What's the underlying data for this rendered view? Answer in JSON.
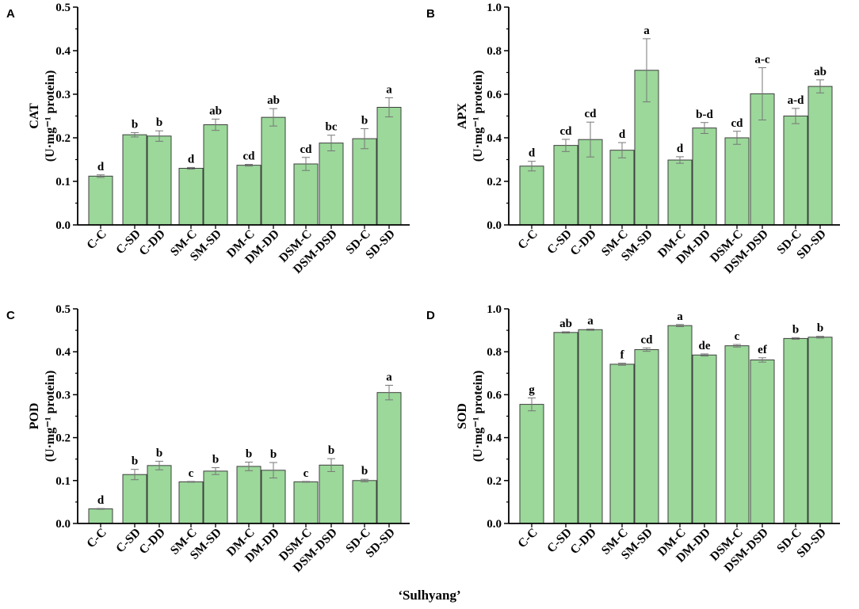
{
  "colors": {
    "bar_fill": "#9bd89a",
    "bar_stroke": "#3f3f3f",
    "axis": "#000000",
    "error": "#777777"
  },
  "x_title": "‘Sulhyang’",
  "categories": [
    "C-C",
    "C-SD",
    "C-DD",
    "SM-C",
    "SM-SD",
    "DM-C",
    "DM-DD",
    "DSM-C",
    "DSM-DSD",
    "SD-C",
    "SD-SD"
  ],
  "chart_data": [
    {
      "panel": "A",
      "type": "bar",
      "ylabel_line1": "CAT",
      "ylabel_line2": "(U·mg⁻¹ protein)",
      "ylim": [
        0,
        0.5
      ],
      "yticks": [
        "0.0",
        "0.1",
        "0.2",
        "0.3",
        "0.4",
        "0.5"
      ],
      "categories": [
        "C-C",
        "C-SD",
        "C-DD",
        "SM-C",
        "SM-SD",
        "DM-C",
        "DM-DD",
        "DSM-C",
        "DSM-DSD",
        "SD-C",
        "SD-SD"
      ],
      "values": [
        0.112,
        0.207,
        0.204,
        0.13,
        0.23,
        0.137,
        0.247,
        0.14,
        0.188,
        0.198,
        0.27
      ],
      "errors": [
        0.003,
        0.005,
        0.012,
        0.002,
        0.013,
        0.002,
        0.02,
        0.015,
        0.018,
        0.023,
        0.022
      ],
      "labels": [
        "d",
        "b",
        "b",
        "d",
        "ab",
        "cd",
        "ab",
        "cd",
        "bc",
        "b",
        "a"
      ]
    },
    {
      "panel": "B",
      "type": "bar",
      "ylabel_line1": "APX",
      "ylabel_line2": "(U·mg⁻¹ protein)",
      "ylim": [
        0,
        1.0
      ],
      "yticks": [
        "0.0",
        "0.2",
        "0.4",
        "0.6",
        "0.8",
        "1.0"
      ],
      "categories": [
        "C-C",
        "C-SD",
        "C-DD",
        "SM-C",
        "SM-SD",
        "DM-C",
        "DM-DD",
        "DSM-C",
        "DSM-DSD",
        "SD-C",
        "SD-SD"
      ],
      "values": [
        0.27,
        0.365,
        0.392,
        0.343,
        0.71,
        0.298,
        0.445,
        0.4,
        0.602,
        0.5,
        0.636
      ],
      "errors": [
        0.022,
        0.028,
        0.08,
        0.035,
        0.145,
        0.015,
        0.025,
        0.03,
        0.12,
        0.035,
        0.03
      ],
      "labels": [
        "d",
        "cd",
        "cd",
        "d",
        "a",
        "d",
        "b-d",
        "cd",
        "a-c",
        "a-d",
        "ab"
      ]
    },
    {
      "panel": "C",
      "type": "bar",
      "ylabel_line1": "POD",
      "ylabel_line2": "(U·mg⁻¹ protein)",
      "ylim": [
        0,
        0.5
      ],
      "yticks": [
        "0.0",
        "0.1",
        "0.2",
        "0.3",
        "0.4",
        "0.5"
      ],
      "categories": [
        "C-C",
        "C-SD",
        "C-DD",
        "SM-C",
        "SM-SD",
        "DM-C",
        "DM-DD",
        "DSM-C",
        "DSM-DSD",
        "SD-C",
        "SD-SD"
      ],
      "values": [
        0.034,
        0.114,
        0.135,
        0.097,
        0.122,
        0.133,
        0.124,
        0.097,
        0.136,
        0.1,
        0.305
      ],
      "errors": [
        0.001,
        0.012,
        0.01,
        0.001,
        0.008,
        0.01,
        0.018,
        0.001,
        0.015,
        0.003,
        0.017
      ],
      "labels": [
        "d",
        "b",
        "b",
        "c",
        "b",
        "b",
        "b",
        "c",
        "b",
        "b",
        "a"
      ]
    },
    {
      "panel": "D",
      "type": "bar",
      "ylabel_line1": "SOD",
      "ylabel_line2": "(U·mg⁻¹ protein)",
      "ylim": [
        0,
        1.0
      ],
      "yticks": [
        "0.0",
        "0.2",
        "0.4",
        "0.6",
        "0.8",
        "1.0"
      ],
      "categories": [
        "C-C",
        "C-SD",
        "C-DD",
        "SM-C",
        "SM-SD",
        "DM-C",
        "DM-DD",
        "DSM-C",
        "DSM-DSD",
        "SD-C",
        "SD-SD"
      ],
      "values": [
        0.555,
        0.89,
        0.903,
        0.742,
        0.81,
        0.922,
        0.785,
        0.828,
        0.762,
        0.862,
        0.868
      ],
      "errors": [
        0.03,
        0.003,
        0.003,
        0.005,
        0.008,
        0.005,
        0.005,
        0.006,
        0.01,
        0.004,
        0.004
      ],
      "labels": [
        "g",
        "ab",
        "a",
        "f",
        "cd",
        "a",
        "de",
        "c",
        "ef",
        "b",
        "b"
      ]
    }
  ]
}
